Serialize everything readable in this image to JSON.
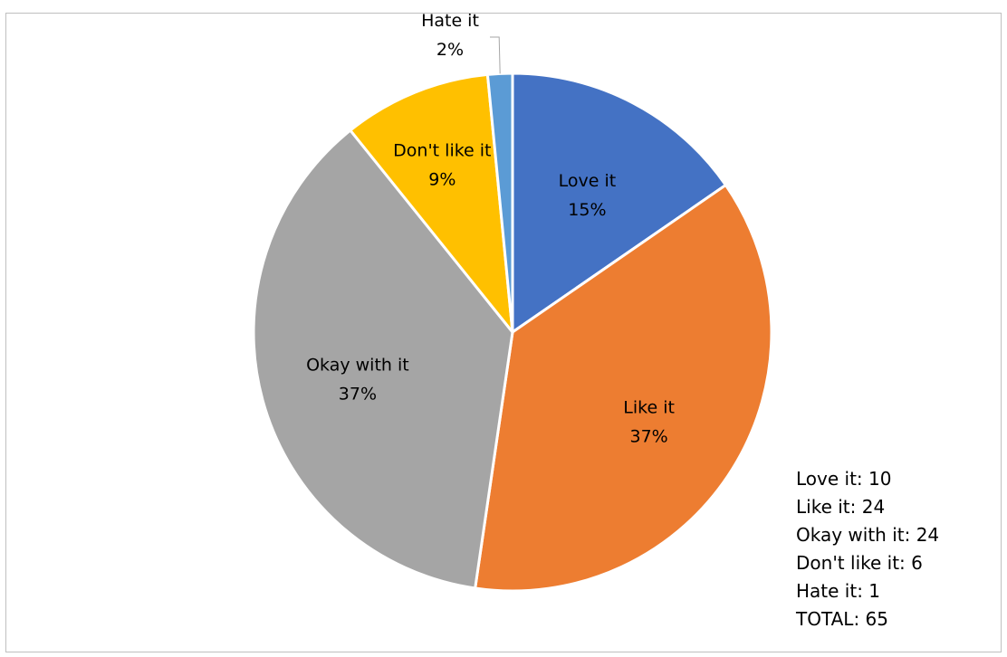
{
  "chart_data": {
    "type": "pie",
    "title": "",
    "categories": [
      "Love it",
      "Like it",
      "Okay with it",
      "Don't like it",
      "Hate it"
    ],
    "values": [
      10,
      24,
      24,
      6,
      1
    ],
    "percent_labels": [
      "15%",
      "37%",
      "37%",
      "9%",
      "2%"
    ],
    "colors": [
      "#4472C4",
      "#ED7D31",
      "#A5A5A5",
      "#FFC000",
      "#5B9BD5"
    ],
    "summary_lines": [
      "Love it: 10",
      "Like it: 24",
      "Okay with it: 24",
      "Don't like it: 6",
      "Hate it: 1",
      "TOTAL: 65"
    ]
  }
}
